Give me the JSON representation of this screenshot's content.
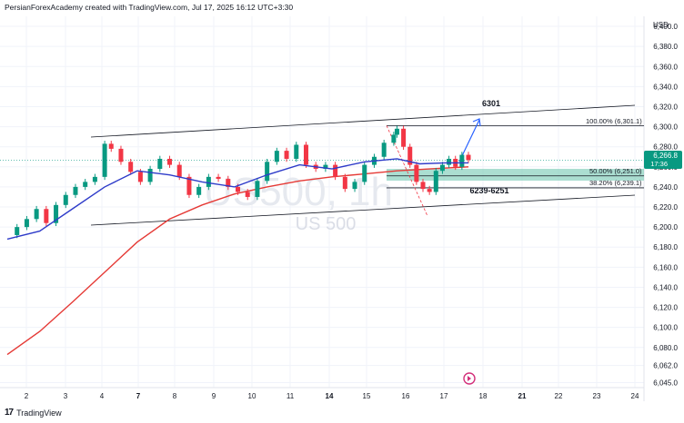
{
  "header": {
    "attribution": "PersianForexAcademy created with TradingView.com, Jul 17, 2025 16:12 UTC+3:30"
  },
  "footer": {
    "brand": "TradingView",
    "logo_text": "17"
  },
  "watermark": {
    "ticker": "US500, 1h",
    "name": "US 500"
  },
  "price_badge": {
    "price": "6,266.8",
    "countdown": "17:36",
    "color": "#089981"
  },
  "currency": "USD",
  "colors": {
    "up": "#089981",
    "down": "#f23645",
    "ma_fast": "#2e3bc9",
    "ma_slow": "#e53935",
    "zone": "#8fd3c1",
    "trend": "#131722",
    "arrow": "#2962ff",
    "grid": "#f0f3fa",
    "projection": "#f23645"
  },
  "annotations": {
    "target_label": "6301",
    "zone_label": "6239-6251",
    "fib_100": "100.00% (6,301.1)",
    "fib_50": "50.00% (6,251.0)",
    "fib_382": "38.20% (6,239.1)"
  },
  "chart_data": {
    "type": "line",
    "symbol": "US500",
    "timeframe": "1h",
    "ylim": [
      6040,
      6410
    ],
    "ytick_labels": [
      "6,045.0",
      "6,062.0",
      "6,080.0",
      "6,100.0",
      "6,120.0",
      "6,140.0",
      "6,160.0",
      "6,180.0",
      "6,200.0",
      "6,220.0",
      "6,240.0",
      "6,260.0",
      "6,280.0",
      "6,300.0",
      "6,320.0",
      "6,340.0",
      "6,360.0",
      "6,380.0",
      "6,400.0"
    ],
    "ytick_values": [
      6045,
      6062,
      6080,
      6100,
      6120,
      6140,
      6160,
      6180,
      6200,
      6220,
      6240,
      6260,
      6280,
      6300,
      6320,
      6340,
      6360,
      6380,
      6400
    ],
    "xtick_labels": [
      "2",
      "3",
      "4",
      "7",
      "8",
      "9",
      "10",
      "11",
      "14",
      "15",
      "16",
      "17",
      "18",
      "21",
      "22",
      "23",
      "24"
    ],
    "xtick_bold": [
      "7",
      "14",
      "21"
    ],
    "price_series": [
      {
        "t": 0,
        "c": 6192
      },
      {
        "t": 0.3,
        "c": 6200
      },
      {
        "t": 0.6,
        "c": 6208
      },
      {
        "t": 0.9,
        "c": 6218
      },
      {
        "t": 1.2,
        "c": 6204
      },
      {
        "t": 1.5,
        "c": 6222
      },
      {
        "t": 1.8,
        "c": 6232
      },
      {
        "t": 2.1,
        "c": 6240
      },
      {
        "t": 2.4,
        "c": 6245
      },
      {
        "t": 2.7,
        "c": 6250
      },
      {
        "t": 3.0,
        "c": 6283
      },
      {
        "t": 3.2,
        "c": 6278
      },
      {
        "t": 3.5,
        "c": 6265
      },
      {
        "t": 3.8,
        "c": 6255
      },
      {
        "t": 4.1,
        "c": 6245
      },
      {
        "t": 4.4,
        "c": 6258
      },
      {
        "t": 4.7,
        "c": 6268
      },
      {
        "t": 5.0,
        "c": 6262
      },
      {
        "t": 5.3,
        "c": 6250
      },
      {
        "t": 5.6,
        "c": 6232
      },
      {
        "t": 5.9,
        "c": 6240
      },
      {
        "t": 6.2,
        "c": 6250
      },
      {
        "t": 6.5,
        "c": 6248
      },
      {
        "t": 6.8,
        "c": 6240
      },
      {
        "t": 7.1,
        "c": 6235
      },
      {
        "t": 7.4,
        "c": 6230
      },
      {
        "t": 7.7,
        "c": 6246
      },
      {
        "t": 8.0,
        "c": 6265
      },
      {
        "t": 8.3,
        "c": 6276
      },
      {
        "t": 8.6,
        "c": 6268
      },
      {
        "t": 8.9,
        "c": 6282
      },
      {
        "t": 9.2,
        "c": 6262
      },
      {
        "t": 9.5,
        "c": 6258
      },
      {
        "t": 9.8,
        "c": 6262
      },
      {
        "t": 10.1,
        "c": 6250
      },
      {
        "t": 10.4,
        "c": 6238
      },
      {
        "t": 10.7,
        "c": 6245
      },
      {
        "t": 11.0,
        "c": 6262
      },
      {
        "t": 11.3,
        "c": 6270
      },
      {
        "t": 11.6,
        "c": 6284
      },
      {
        "t": 11.9,
        "c": 6292
      },
      {
        "t": 12.0,
        "c": 6298
      },
      {
        "t": 12.2,
        "c": 6280
      },
      {
        "t": 12.4,
        "c": 6262
      },
      {
        "t": 12.6,
        "c": 6245
      },
      {
        "t": 12.8,
        "c": 6238
      },
      {
        "t": 13.0,
        "c": 6235
      },
      {
        "t": 13.2,
        "c": 6256
      },
      {
        "t": 13.4,
        "c": 6262
      },
      {
        "t": 13.6,
        "c": 6268
      },
      {
        "t": 13.8,
        "c": 6260
      },
      {
        "t": 14.0,
        "c": 6272
      },
      {
        "t": 14.2,
        "c": 6266.8
      }
    ],
    "ma_fast": [
      {
        "t": 0,
        "v": 6188
      },
      {
        "t": 1,
        "v": 6196
      },
      {
        "t": 2,
        "v": 6218
      },
      {
        "t": 3,
        "v": 6240
      },
      {
        "t": 4,
        "v": 6256
      },
      {
        "t": 5,
        "v": 6252
      },
      {
        "t": 6,
        "v": 6245
      },
      {
        "t": 7,
        "v": 6240
      },
      {
        "t": 8,
        "v": 6252
      },
      {
        "t": 9,
        "v": 6262
      },
      {
        "t": 10,
        "v": 6258
      },
      {
        "t": 11,
        "v": 6265
      },
      {
        "t": 12,
        "v": 6268
      },
      {
        "t": 12.7,
        "v": 6263
      },
      {
        "t": 13.5,
        "v": 6264
      },
      {
        "t": 14.2,
        "v": 6264
      }
    ],
    "ma_slow": [
      {
        "t": 0,
        "v": 6073
      },
      {
        "t": 1,
        "v": 6096
      },
      {
        "t": 2,
        "v": 6125
      },
      {
        "t": 3,
        "v": 6155
      },
      {
        "t": 4,
        "v": 6185
      },
      {
        "t": 5,
        "v": 6208
      },
      {
        "t": 6,
        "v": 6222
      },
      {
        "t": 7,
        "v": 6233
      },
      {
        "t": 8,
        "v": 6240
      },
      {
        "t": 9,
        "v": 6246
      },
      {
        "t": 10,
        "v": 6250
      },
      {
        "t": 11,
        "v": 6253
      },
      {
        "t": 12,
        "v": 6256
      },
      {
        "t": 13,
        "v": 6258
      },
      {
        "t": 14.2,
        "v": 6260
      }
    ]
  }
}
